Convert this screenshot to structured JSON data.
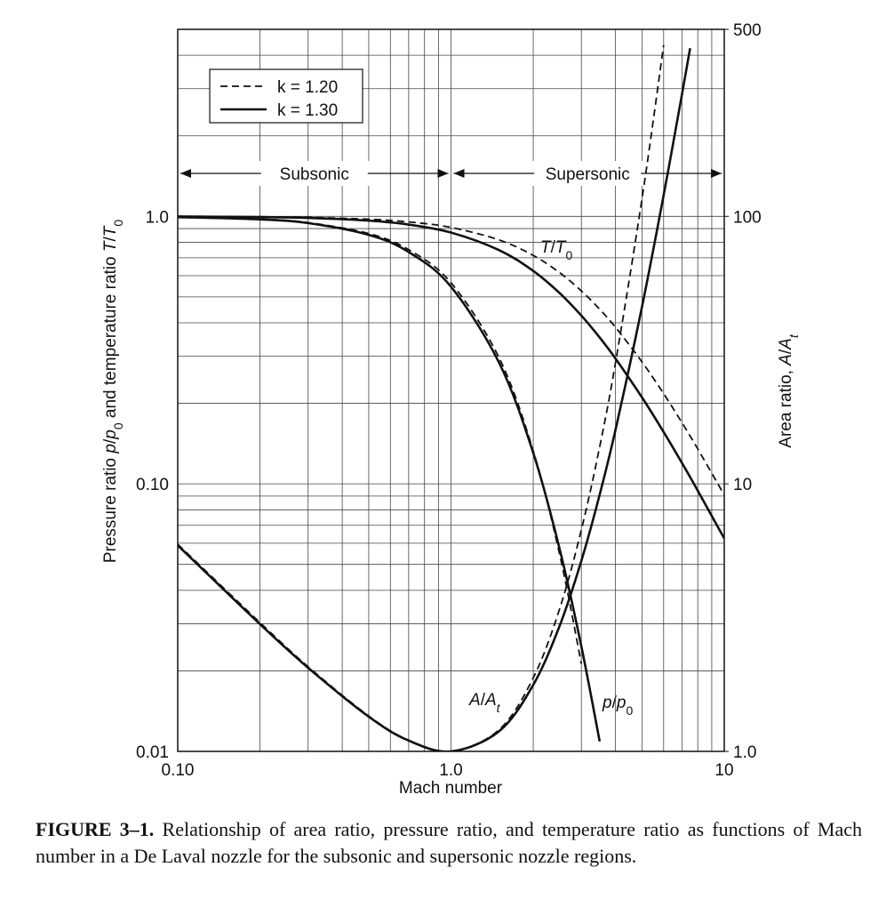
{
  "chart_data": {
    "type": "line",
    "x_label": "Mach number",
    "y_label": [
      {
        "text": "Pressure ratio "
      },
      {
        "text": "p",
        "italic": true
      },
      {
        "text": "/"
      },
      {
        "text": "p",
        "italic": true
      },
      {
        "text": "0",
        "sub": true
      },
      {
        "text": " and temperature ratio "
      },
      {
        "text": "T",
        "italic": true
      },
      {
        "text": "/"
      },
      {
        "text": "T",
        "italic": true
      },
      {
        "text": "0",
        "sub": true
      }
    ],
    "y2_label": [
      {
        "text": "Area ratio, "
      },
      {
        "text": "A",
        "italic": true
      },
      {
        "text": "/"
      },
      {
        "text": "A",
        "italic": true
      },
      {
        "text": "t",
        "sub": true,
        "italic": true
      }
    ],
    "log_x": true,
    "log_y": true,
    "log_y2": true,
    "xlim": [
      0.1,
      10
    ],
    "ylim": [
      0.01,
      5
    ],
    "y2lim": [
      1,
      500
    ],
    "xticks": [
      {
        "value": 0.1,
        "label": "0.10"
      },
      {
        "value": 1,
        "label": "1.0"
      },
      10
    ],
    "yticks": [
      {
        "value": 0.01,
        "label": "0.01"
      },
      {
        "value": 0.1,
        "label": "0.10"
      },
      {
        "value": 1,
        "label": "1.0"
      }
    ],
    "y2ticks": [
      {
        "value": 1,
        "label": "1.0"
      },
      10,
      100,
      500
    ],
    "xgrid": [
      0.2,
      0.3,
      0.4,
      0.5,
      0.6,
      0.7,
      0.8,
      0.9,
      2,
      3,
      4,
      5,
      6,
      7,
      8,
      9
    ],
    "ygrid": [
      0.02,
      0.03,
      0.04,
      0.05,
      0.06,
      0.07,
      0.08,
      0.09,
      0.2,
      0.3,
      0.4,
      0.5,
      0.6,
      0.7,
      0.8,
      0.9,
      2,
      3,
      4
    ],
    "grid": true,
    "legend": "upper left",
    "regions": [
      {
        "label": "Subsonic",
        "from": 0.1,
        "to": 1
      },
      {
        "label": "Supersonic",
        "from": 1,
        "to": 10
      }
    ],
    "annotations": [
      {
        "parts": [
          {
            "text": "T",
            "italic": true
          },
          {
            "text": "/"
          },
          {
            "text": "T",
            "italic": true
          },
          {
            "text": "0",
            "sub": true
          }
        ]
      },
      {
        "parts": [
          {
            "text": "A",
            "italic": true
          },
          {
            "text": "/"
          },
          {
            "text": "A",
            "italic": true
          },
          {
            "text": "t",
            "sub": true,
            "italic": true
          }
        ]
      },
      {
        "parts": [
          {
            "text": "p",
            "italic": true
          },
          {
            "text": "/"
          },
          {
            "text": "p",
            "italic": true
          },
          {
            "text": "0",
            "sub": true
          }
        ]
      }
    ],
    "x": [
      0.1,
      0.2,
      0.3,
      0.5,
      0.7,
      1,
      1.5,
      2,
      2.5,
      3,
      3.5,
      4,
      5,
      6,
      7,
      7.5,
      8,
      10
    ],
    "series": [
      {
        "name": "k = 1.20",
        "line_style": "dashed",
        "color": "#111111",
        "temperature_ratio": [
          0.999,
          0.996,
          0.9911,
          0.9756,
          0.9533,
          0.9091,
          0.8163,
          0.7143,
          0.6154,
          0.5263,
          0.4494,
          0.3846,
          0.2857,
          0.2174,
          0.1695,
          0.1509,
          0.1351,
          0.0909
        ],
        "pressure_ratio": [
          0.994,
          0.9763,
          0.9477,
          0.8623,
          0.7505,
          0.5645,
          0.2959,
          0.1328,
          0.0543,
          0.02125,
          null,
          null,
          null,
          null,
          null,
          null,
          null,
          null
        ],
        "area_ratio": [
          5.95,
          3.03,
          2.073,
          1.356,
          1.1003,
          1,
          1.2051,
          1.884,
          3.42,
          6.74,
          13.75,
          28.4,
          116.3,
          436,
          null,
          null,
          null,
          null
        ]
      },
      {
        "name": "k = 1.30",
        "line_style": "solid",
        "color": "#111111",
        "temperature_ratio": [
          0.9985,
          0.994,
          0.9867,
          0.9639,
          0.9315,
          0.8696,
          0.7477,
          0.625,
          0.5161,
          0.4255,
          0.3524,
          0.2941,
          0.2105,
          0.15625,
          0.1198,
          0.106,
          0.0943,
          0.0625
        ],
        "pressure_ratio": [
          0.9935,
          0.9744,
          0.9436,
          0.8526,
          0.7354,
          0.5457,
          0.2836,
          0.1305,
          0.0569,
          0.02466,
          0.0109,
          null,
          null,
          null,
          null,
          null,
          null,
          null
        ],
        "area_ratio": [
          5.89,
          2.99,
          2.054,
          1.348,
          1.0975,
          1,
          1.1896,
          1.773,
          2.954,
          5.16,
          9.11,
          15.94,
          45.9,
          120,
          285,
          425,
          null,
          null
        ]
      }
    ]
  },
  "caption": {
    "label": "FIGURE 3–1.",
    "text": "Relationship of area ratio, pressure ratio, and temperature ratio as functions of Mach number in a De Laval nozzle for the subsonic and supersonic nozzle regions."
  }
}
